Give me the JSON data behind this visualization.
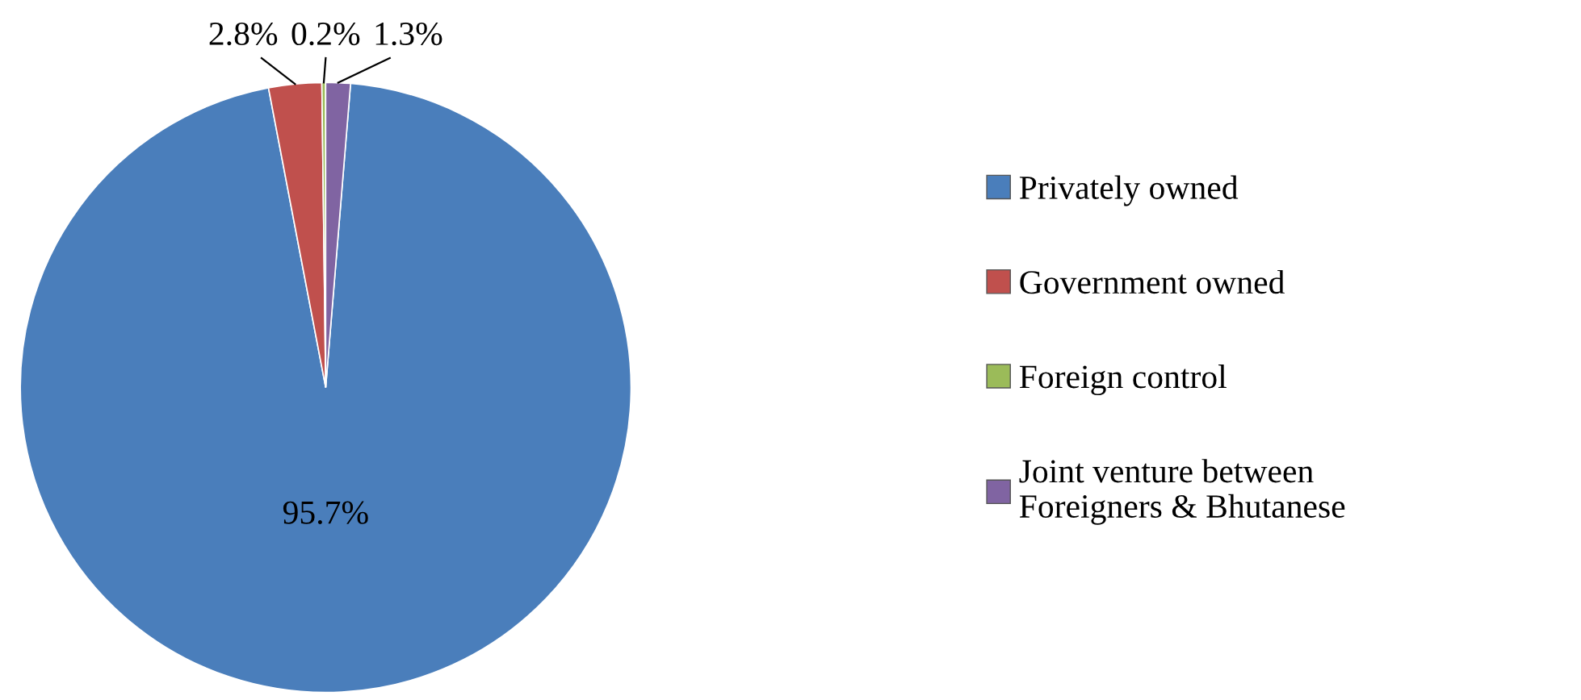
{
  "chart_data": {
    "type": "pie",
    "categories": [
      "Privately owned",
      "Government owned",
      "Foreign control",
      "Joint venture between\nForeigners & Bhutanese"
    ],
    "values": [
      95.7,
      2.8,
      0.2,
      1.3
    ],
    "colors": [
      "#4a7ebb",
      "#c0504d",
      "#9bbb59",
      "#8064a2"
    ],
    "value_labels": [
      "95.7%",
      "2.8%",
      "0.2%",
      "1.3%"
    ],
    "legend": "right"
  }
}
